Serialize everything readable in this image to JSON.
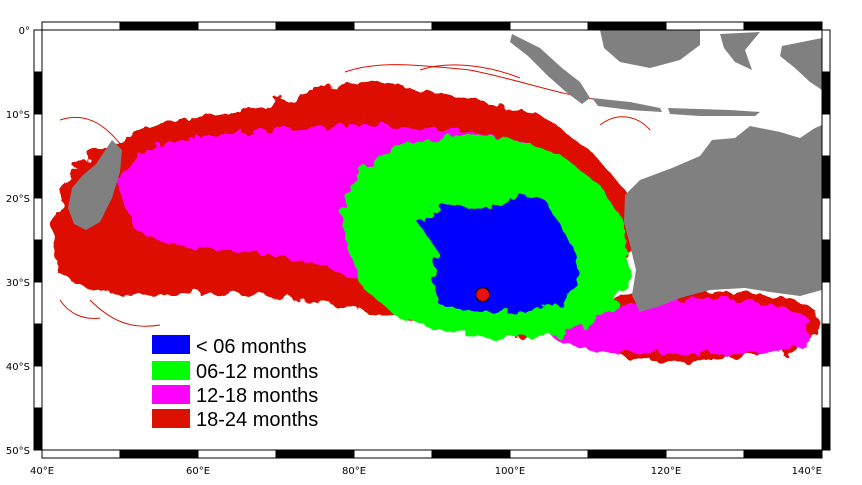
{
  "map": {
    "lon_range": [
      40,
      140
    ],
    "lat_range": [
      0,
      -50
    ],
    "ocean_color": "#ffffff",
    "land_color": "#808080",
    "lon_labels": [
      {
        "lon": 40,
        "text": "40°E"
      },
      {
        "lon": 60,
        "text": "60°E"
      },
      {
        "lon": 80,
        "text": "80°E"
      },
      {
        "lon": 100,
        "text": "100°E"
      },
      {
        "lon": 120,
        "text": "120°E"
      },
      {
        "lon": 140,
        "text": "140°E"
      }
    ],
    "lat_labels": [
      {
        "lat": 0,
        "text": "0°"
      },
      {
        "lat": -10,
        "text": "10°S"
      },
      {
        "lat": -20,
        "text": "20°S"
      },
      {
        "lat": -30,
        "text": "30°S"
      },
      {
        "lat": -40,
        "text": "40°S"
      },
      {
        "lat": -50,
        "text": "50°S"
      }
    ],
    "release_point": {
      "lon": 96.5,
      "lat": -31.5,
      "color": "#e81010"
    }
  },
  "legend": {
    "items": [
      {
        "label": "< 06 months",
        "color": "#0000ff"
      },
      {
        "label": "06-12 months",
        "color": "#00ff00"
      },
      {
        "label": "12-18 months",
        "color": "#ff00ff"
      },
      {
        "label": "18-24 months",
        "color": "#dd1100"
      }
    ]
  }
}
